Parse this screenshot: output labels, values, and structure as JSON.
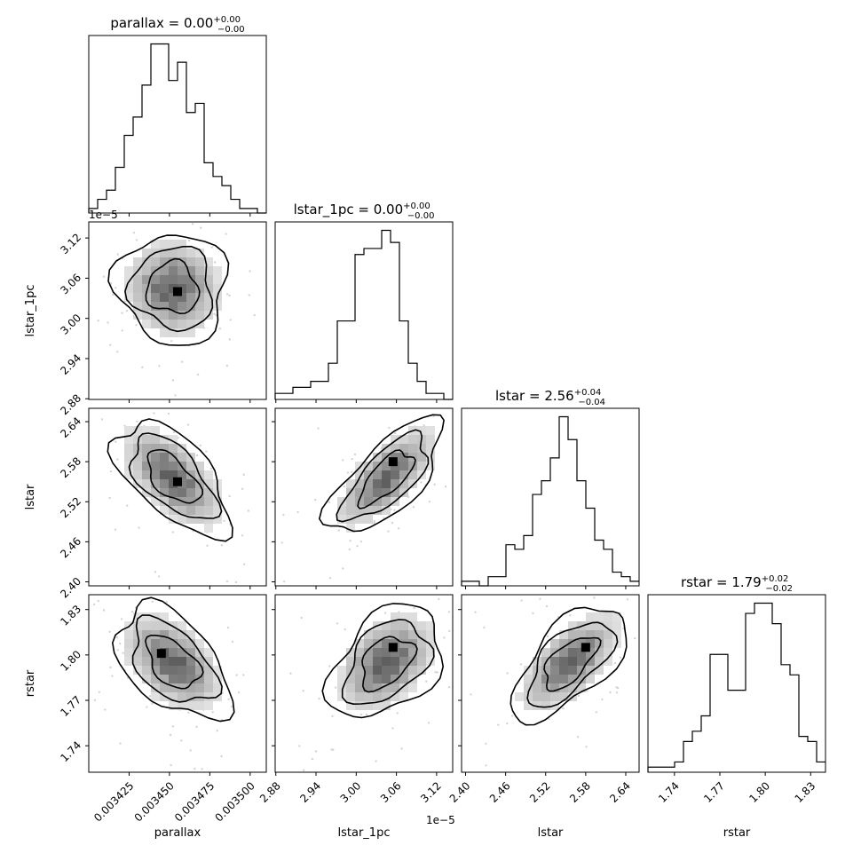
{
  "chart_data": {
    "type": "corner",
    "parameters": [
      "parallax",
      "lstar_1pc",
      "lstar",
      "rstar"
    ],
    "titles": [
      {
        "name": "parallax",
        "value": "0.00",
        "plus": "+0.00",
        "minus": "−0.00"
      },
      {
        "name": "lstar_1pc",
        "value": "0.00",
        "plus": "+0.00",
        "minus": "−0.00"
      },
      {
        "name": "lstar",
        "value": "2.56",
        "plus": "+0.04",
        "minus": "−0.04"
      },
      {
        "name": "rstar",
        "value": "1.79",
        "plus": "+0.02",
        "minus": "−0.02"
      }
    ],
    "axis_labels": [
      "parallax",
      "lstar_1pc",
      "lstar",
      "rstar"
    ],
    "axes": [
      {
        "range": [
          0.0034,
          0.00351
        ],
        "ticks": [
          0.003425,
          0.00345,
          0.003475,
          0.0035
        ],
        "tick_labels": [
          "0.003425",
          "0.003450",
          "0.003475",
          "0.003500"
        ]
      },
      {
        "range": [
          2.879e-05,
          3.144e-05
        ],
        "ticks": [
          2.88e-05,
          2.94e-05,
          3e-05,
          3.06e-05,
          3.12e-05
        ],
        "tick_labels": [
          "2.88",
          "2.94",
          "3.00",
          "3.06",
          "3.12"
        ],
        "offset_label": "1e−5"
      },
      {
        "range": [
          2.394,
          2.66
        ],
        "ticks": [
          2.4,
          2.46,
          2.52,
          2.58,
          2.64
        ],
        "tick_labels": [
          "2.40",
          "2.46",
          "2.52",
          "2.58",
          "2.64"
        ]
      },
      {
        "range": [
          1.7225,
          1.8398
        ],
        "ticks": [
          1.74,
          1.77,
          1.8,
          1.83
        ],
        "tick_labels": [
          "1.74",
          "1.77",
          "1.80",
          "1.83"
        ]
      }
    ],
    "histograms": [
      [
        1,
        3,
        5,
        10,
        17,
        21,
        28,
        37,
        37,
        29,
        33,
        22,
        24,
        11,
        8,
        6,
        3,
        1,
        1,
        0
      ],
      [
        1,
        1,
        2,
        2,
        3,
        3,
        6,
        13,
        13,
        24,
        25,
        25,
        28,
        26,
        13,
        6,
        3,
        1,
        1,
        0
      ],
      [
        1,
        1,
        0,
        2,
        2,
        9,
        8,
        11,
        20,
        23,
        28,
        37,
        32,
        23,
        17,
        10,
        8,
        3,
        2,
        1
      ],
      [
        1,
        1,
        1,
        2,
        6,
        8,
        11,
        23,
        23,
        16,
        16,
        31,
        33,
        33,
        29,
        21,
        19,
        7,
        6,
        2
      ]
    ],
    "pairs": [
      {
        "x": "parallax",
        "y": "lstar_1pc",
        "center": [
          0.003452,
          3.045e-05
        ],
        "correlation": -0.05,
        "peak": [
          0.003455,
          3.04e-05
        ]
      },
      {
        "x": "parallax",
        "y": "lstar",
        "center": [
          0.003452,
          2.556
        ],
        "correlation": -0.7,
        "peak": [
          0.003455,
          2.55
        ]
      },
      {
        "x": "parallax",
        "y": "rstar",
        "center": [
          0.003452,
          1.795
        ],
        "correlation": -0.55,
        "peak": [
          0.003445,
          1.801
        ]
      },
      {
        "x": "lstar_1pc",
        "y": "lstar",
        "center": [
          3.045e-05,
          2.556
        ],
        "correlation": 0.85,
        "peak": [
          3.055e-05,
          2.58
        ]
      },
      {
        "x": "lstar_1pc",
        "y": "rstar",
        "center": [
          3.045e-05,
          1.795
        ],
        "correlation": 0.45,
        "peak": [
          3.055e-05,
          1.805
        ]
      },
      {
        "x": "lstar",
        "y": "rstar",
        "center": [
          2.556,
          1.795
        ],
        "correlation": 0.75,
        "peak": [
          2.58,
          1.805
        ]
      }
    ],
    "grid": false,
    "legend": "none"
  }
}
